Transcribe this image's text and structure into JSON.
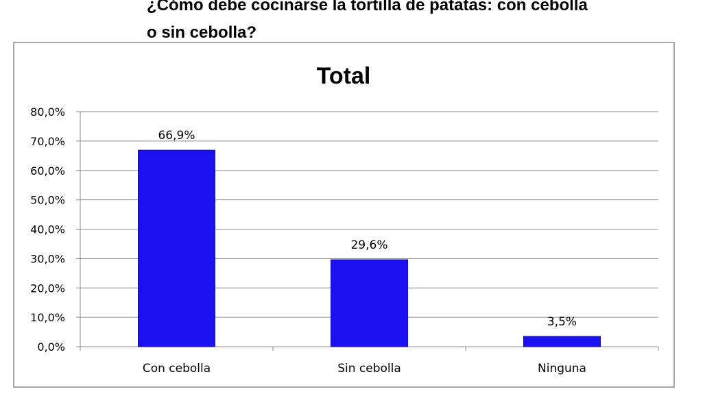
{
  "question": {
    "line1": "¿Cómo debe cocinarse la tortilla de patatas: con cebolla",
    "line2": "o sin cebolla?"
  },
  "chart_data": {
    "type": "bar",
    "title": "Total",
    "categories": [
      "Con cebolla",
      "Sin cebolla",
      "Ninguna"
    ],
    "values": [
      66.9,
      29.6,
      3.5
    ],
    "data_labels": [
      "66,9%",
      "29,6%",
      "3,5%"
    ],
    "y_ticks": [
      "0,0%",
      "10,0%",
      "20,0%",
      "30,0%",
      "40,0%",
      "50,0%",
      "60,0%",
      "70,0%",
      "80,0%"
    ],
    "ylim": [
      0,
      80
    ],
    "grid": true,
    "legend": "none",
    "bar_color": "#1a10f0"
  }
}
